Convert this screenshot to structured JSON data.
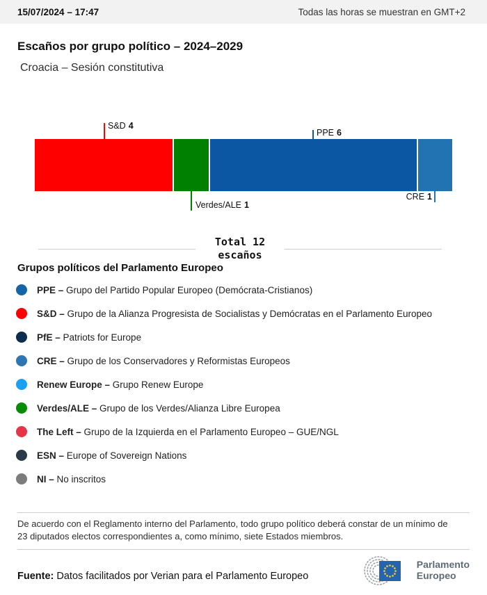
{
  "header": {
    "datetime": "15/07/2024 – 17:47",
    "timezone_note": "Todas las horas se muestran en GMT+2"
  },
  "title": "Escaños por grupo político – 2024–2029",
  "subtitle": "Croacia – Sesión constitutiva",
  "chart_data": {
    "type": "bar",
    "variant": "horizontal-stacked",
    "title": "Escaños por grupo político – 2024–2029",
    "subtitle": "Croacia – Sesión constitutiva",
    "total_seats": 12,
    "total_label_line1": "Total 12",
    "total_label_line2": "escaños",
    "segments": [
      {
        "abbr": "S&D",
        "seats": 4,
        "color": "#ff0000",
        "callout": {
          "side": "above",
          "text_side": "right",
          "leader": 23
        }
      },
      {
        "abbr": "Verdes/ALE",
        "seats": 1,
        "color": "#008000",
        "callout": {
          "side": "below",
          "text_side": "right",
          "leader": 28
        }
      },
      {
        "abbr": "PPE",
        "seats": 6,
        "color": "#0b57a4",
        "callout": {
          "side": "above",
          "text_side": "right",
          "leader": 13
        }
      },
      {
        "abbr": "CRE",
        "seats": 1,
        "color": "#2173b2",
        "callout": {
          "side": "below",
          "text_side": "left",
          "leader": 16
        }
      }
    ]
  },
  "legend": {
    "heading": "Grupos políticos del Parlamento Europeo",
    "separator": "–",
    "items": [
      {
        "abbr": "PPE",
        "name": "Grupo del Partido Popular Europeo (Demócrata-Cristianos)",
        "color": "#1566a9"
      },
      {
        "abbr": "S&D",
        "name": "Grupo de la Alianza Progresista de Socialistas y Demócratas en el Parlamento Europeo",
        "color": "#ff0000"
      },
      {
        "abbr": "PfE",
        "name": "Patriots for Europe",
        "color": "#0c2d4e"
      },
      {
        "abbr": "CRE",
        "name": "Grupo de los Conservadores y Reformistas Europeos",
        "color": "#2e76b3"
      },
      {
        "abbr": "Renew Europe",
        "name": "Grupo Renew Europe",
        "color": "#1ba1f3"
      },
      {
        "abbr": "Verdes/ALE",
        "name": "Grupo de los Verdes/Alianza Libre Europea",
        "color": "#068c06"
      },
      {
        "abbr": "The Left",
        "name": "Grupo de la Izquierda en el Parlamento Europeo – GUE/NGL",
        "color": "#e73448"
      },
      {
        "abbr": "ESN",
        "name": "Europe of Sovereign Nations",
        "color": "#2b3a49"
      },
      {
        "abbr": "NI",
        "name": "No inscritos",
        "color": "#7c7c7c"
      }
    ]
  },
  "footnote": "De acuerdo con el Reglamento interno del Parlamento, todo grupo político deberá constar de un mínimo de 23 diputados electos correspondientes a, como mínimo, siete Estados miembros.",
  "source": {
    "label": "Fuente:",
    "text": "Datos facilitados por Verian para el Parlamento Europeo"
  },
  "logo": {
    "line1": "Parlamento",
    "line2": "Europeo"
  }
}
